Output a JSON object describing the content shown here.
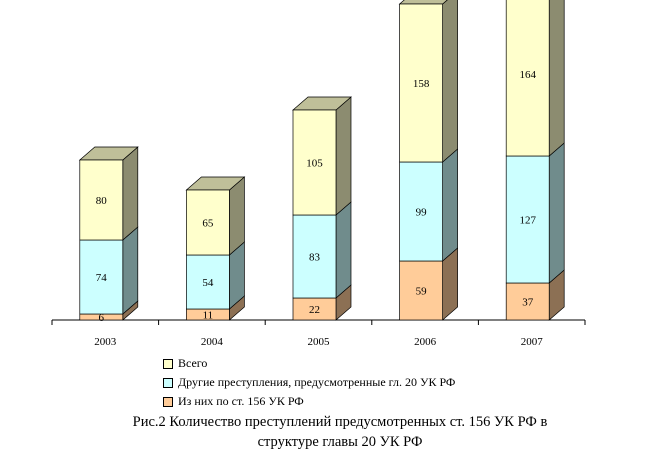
{
  "chart_data": {
    "type": "bar",
    "stacked": true,
    "categories": [
      "2003",
      "2004",
      "2005",
      "2006",
      "2007"
    ],
    "series": [
      {
        "name": "Из них по ст. 156 УК РФ",
        "values": [
          6,
          11,
          22,
          59,
          37
        ],
        "color": "#FFCC99"
      },
      {
        "name": "Другие преступления, предусмотренные гл. 20 УК РФ",
        "values": [
          74,
          54,
          83,
          99,
          127
        ],
        "color": "#CCFFFF"
      },
      {
        "name": "Всего",
        "values": [
          80,
          65,
          105,
          158,
          164
        ],
        "color": "#FFFFCC"
      }
    ],
    "legend_placement": "bottom",
    "grid": false,
    "title": "Рис.2 Количество преступлений предусмотренных ст. 156 УК РФ в структуре главы 20 УК РФ"
  },
  "legend": [
    {
      "label": "Всего",
      "color": "#FFFFCC"
    },
    {
      "label": "Другие преступления, предусмотренные гл. 20 УК РФ",
      "color": "#CCFFFF"
    },
    {
      "label": "Из них по ст. 156 УК РФ",
      "color": "#FFCC99"
    }
  ],
  "caption": {
    "line1": "Рис.2 Количество преступлений предусмотренных ст. 156 УК РФ в",
    "line2": "структуре главы 20 УК РФ"
  }
}
